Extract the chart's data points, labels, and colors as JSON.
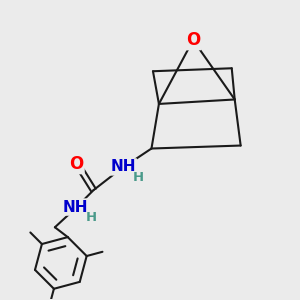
{
  "background_color": "#ebebeb",
  "bond_color": "#1a1a1a",
  "bond_width": 1.5,
  "atom_colors": {
    "O": "#ff0000",
    "N": "#0000cc",
    "H": "#4a9a8a",
    "C": "#1a1a1a"
  }
}
